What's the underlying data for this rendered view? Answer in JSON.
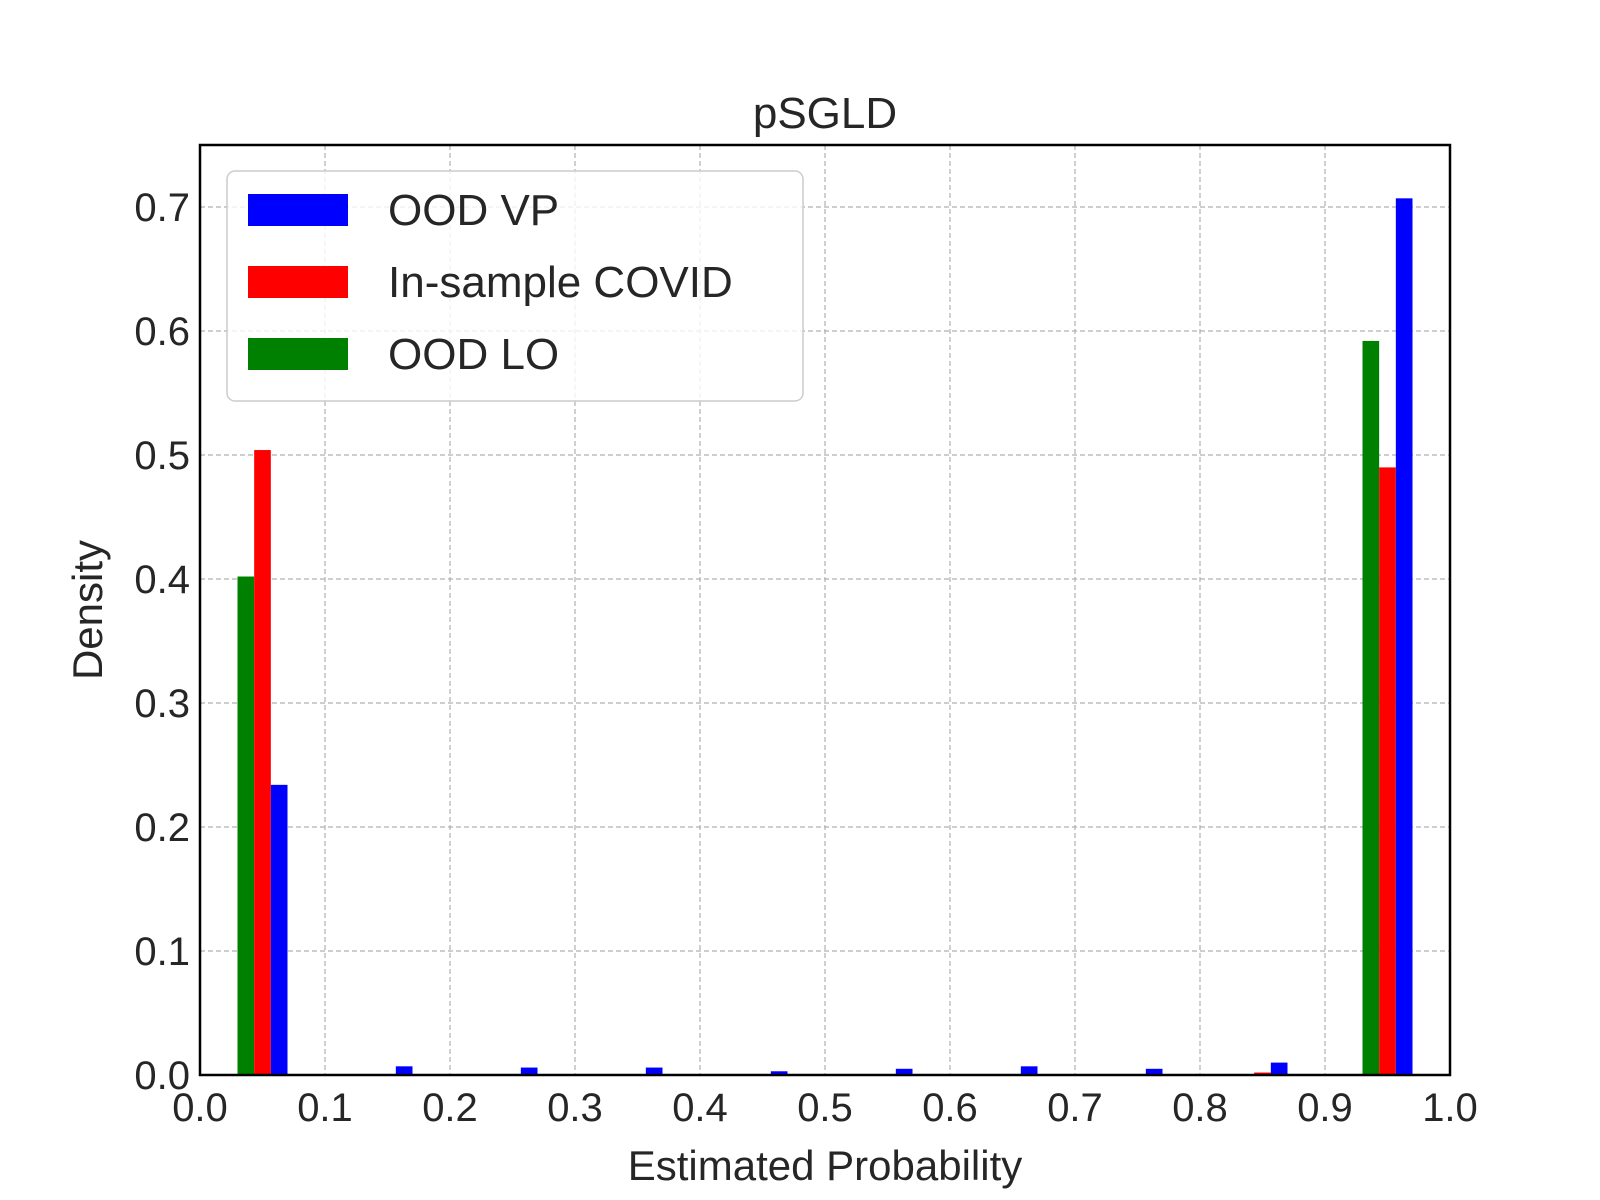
{
  "chart_data": {
    "type": "bar",
    "title": "pSGLD",
    "xlabel": "Estimated Probability",
    "ylabel": "Density",
    "xlim": [
      0.0,
      1.0
    ],
    "ylim": [
      0.0,
      0.75
    ],
    "xticks": [
      "0.0",
      "0.1",
      "0.2",
      "0.3",
      "0.4",
      "0.5",
      "0.6",
      "0.7",
      "0.8",
      "0.9",
      "1.0"
    ],
    "yticks": [
      "0.0",
      "0.1",
      "0.2",
      "0.3",
      "0.4",
      "0.5",
      "0.6",
      "0.7"
    ],
    "grid": true,
    "legend_position": "upper-left",
    "bin_centers": [
      0.05,
      0.15,
      0.25,
      0.35,
      0.45,
      0.55,
      0.65,
      0.75,
      0.85,
      0.95
    ],
    "series": [
      {
        "name": "OOD VP",
        "color": "#0000ff",
        "values": [
          0.234,
          0.007,
          0.006,
          0.006,
          0.003,
          0.005,
          0.007,
          0.005,
          0.01,
          0.707
        ]
      },
      {
        "name": "In-sample COVID",
        "color": "#ff0000",
        "values": [
          0.504,
          0.0,
          0.0,
          0.0,
          0.0,
          0.0,
          0.0,
          0.0,
          0.002,
          0.49
        ]
      },
      {
        "name": "OOD LO",
        "color": "#008000",
        "values": [
          0.402,
          0.0,
          0.0,
          0.0,
          0.0,
          0.0,
          0.0,
          0.0,
          0.0,
          0.592
        ]
      }
    ]
  }
}
